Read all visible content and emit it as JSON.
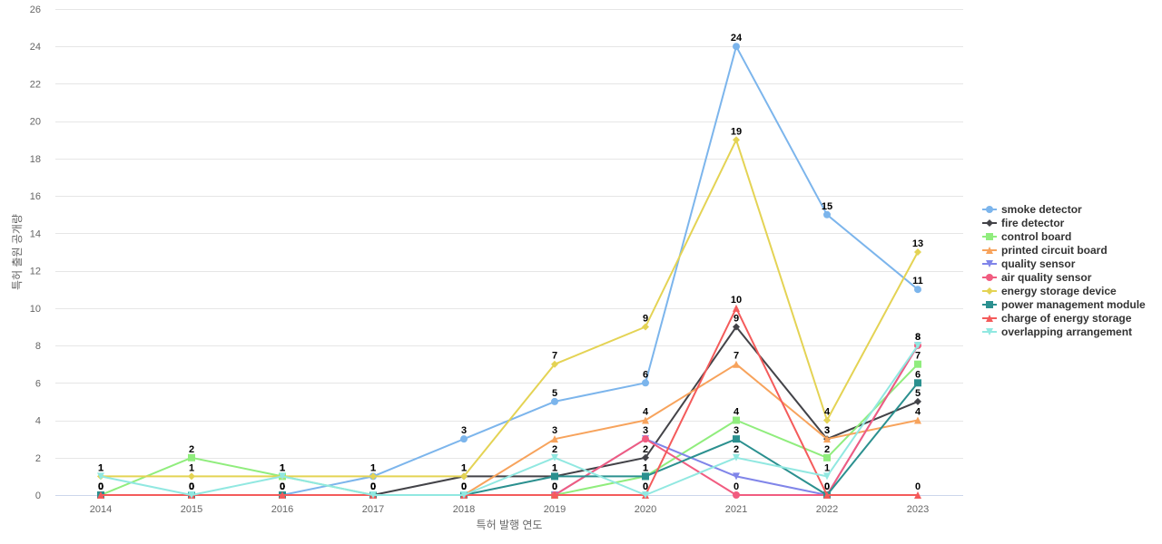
{
  "chart_data": {
    "type": "line",
    "xlabel": "특허 발행 연도",
    "ylabel": "특허 출원 공개량",
    "ylim": [
      0,
      26
    ],
    "y_ticks": [
      0,
      2,
      4,
      6,
      8,
      10,
      12,
      14,
      16,
      18,
      20,
      22,
      24,
      26
    ],
    "grid": true,
    "legend_position": "right",
    "categories": [
      "2014",
      "2015",
      "2016",
      "2017",
      "2018",
      "2019",
      "2020",
      "2021",
      "2022",
      "2023"
    ],
    "series": [
      {
        "name": "smoke detector",
        "color": "#7cb5ec",
        "marker": "circle",
        "values": [
          0,
          0,
          0,
          1,
          3,
          5,
          6,
          24,
          15,
          11
        ],
        "labeled": true
      },
      {
        "name": "fire detector",
        "color": "#434348",
        "marker": "diamond",
        "values": [
          0,
          0,
          0,
          0,
          1,
          1,
          2,
          9,
          3,
          5
        ],
        "labeled": true
      },
      {
        "name": "control board",
        "color": "#90ed7d",
        "marker": "square",
        "values": [
          0,
          2,
          1,
          0,
          0,
          0,
          1,
          4,
          2,
          7
        ],
        "labeled": true
      },
      {
        "name": "printed circuit board",
        "color": "#f7a35c",
        "marker": "triangle",
        "values": [
          0,
          0,
          0,
          0,
          0,
          3,
          4,
          7,
          3,
          4
        ],
        "labeled": true
      },
      {
        "name": "quality sensor",
        "color": "#8085e9",
        "marker": "triangle-down",
        "values": [
          0,
          0,
          0,
          0,
          0,
          0,
          3,
          1,
          0,
          8
        ],
        "labeled": false
      },
      {
        "name": "air quality sensor",
        "color": "#f15c80",
        "marker": "circle",
        "values": [
          0,
          0,
          0,
          0,
          0,
          0,
          3,
          0,
          0,
          8
        ],
        "labeled": true
      },
      {
        "name": "energy storage device",
        "color": "#e4d354",
        "marker": "diamond",
        "values": [
          1,
          1,
          1,
          1,
          1,
          7,
          9,
          19,
          4,
          13
        ],
        "labeled": true
      },
      {
        "name": "power management module",
        "color": "#2b908f",
        "marker": "square",
        "values": [
          0,
          0,
          0,
          0,
          0,
          1,
          1,
          3,
          0,
          6
        ],
        "labeled": true
      },
      {
        "name": "charge of energy storage",
        "color": "#f45b5b",
        "marker": "triangle",
        "values": [
          0,
          0,
          0,
          0,
          0,
          0,
          0,
          10,
          0,
          0
        ],
        "labeled": true
      },
      {
        "name": "overlapping arrangement",
        "color": "#91e8e1",
        "marker": "triangle-down",
        "values": [
          1,
          0,
          1,
          0,
          0,
          2,
          0,
          2,
          1,
          8
        ],
        "labeled": true
      }
    ]
  }
}
